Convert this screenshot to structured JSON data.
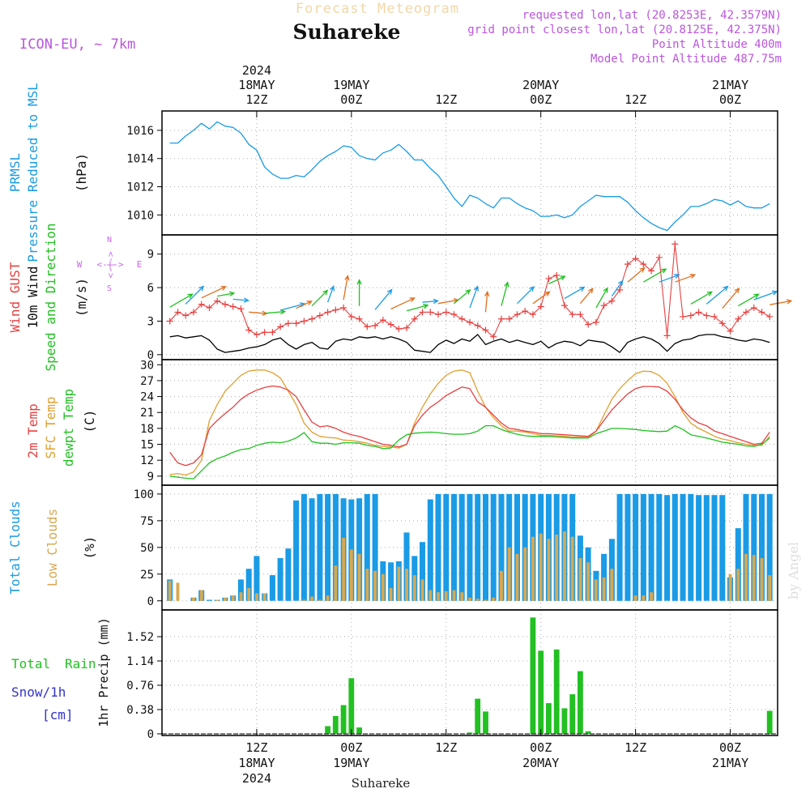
{
  "header": {
    "subtitle": "Forecast Meteogram",
    "location": "Suhareke",
    "model": "ICON-EU, ~ 7km",
    "requested": "requested lon,lat (20.8253E, 42.3579N)",
    "gridpoint": "grid point closest lon,lat (20.8125E, 42.375N)",
    "point_alt": "Point Altitude 400m",
    "model_alt": "Model Point Altitude 487.75m",
    "footer": "Suhareke",
    "watermark": "by Angel"
  },
  "colors": {
    "pressure": "#1a9be6",
    "gust": "#e84040",
    "wind": "#000000",
    "temp2m": "#e84040",
    "sfc": "#e0a030",
    "dewpt": "#22c022",
    "clouds_total": "#1a9be6",
    "clouds_low": "#d8a850",
    "rain": "#22c022",
    "snow": "#3333cc",
    "header_purple": "#bb55dd",
    "compass": "#cc66ee"
  },
  "time_axis": {
    "top_year": "2024",
    "top": [
      {
        "h": 12,
        "l1": "18MAY",
        "l2": "12Z"
      },
      {
        "h": 24,
        "l1": "19MAY",
        "l2": "00Z"
      },
      {
        "h": 36,
        "l1": "",
        "l2": "12Z"
      },
      {
        "h": 48,
        "l1": "20MAY",
        "l2": "00Z"
      },
      {
        "h": 60,
        "l1": "",
        "l2": "12Z"
      },
      {
        "h": 72,
        "l1": "21MAY",
        "l2": "00Z"
      }
    ],
    "bottom": [
      {
        "h": 12,
        "l1": "12Z",
        "l2": "18MAY",
        "l3": "2024"
      },
      {
        "h": 24,
        "l1": "00Z",
        "l2": "19MAY",
        "l3": ""
      },
      {
        "h": 36,
        "l1": "12Z",
        "l2": "",
        "l3": ""
      },
      {
        "h": 48,
        "l1": "00Z",
        "l2": "20MAY",
        "l3": ""
      },
      {
        "h": 60,
        "l1": "12Z",
        "l2": "",
        "l3": ""
      },
      {
        "h": 72,
        "l1": "00Z",
        "l2": "21MAY",
        "l3": ""
      }
    ]
  },
  "panel_labels": {
    "pressure": [
      "PRMSL",
      "Pressure Reduced to MSL",
      "(hPa)"
    ],
    "wind": [
      "Wind GUST",
      "10m Wind",
      "Speed and Direction",
      "(m/s)"
    ],
    "compass": [
      "N",
      "W",
      "E",
      "S",
      "<-|->"
    ],
    "temp": [
      "2m Temp",
      "SFC Temp",
      "dewpt Temp",
      "(C)"
    ],
    "clouds": [
      "Total Clouds",
      "Low Clouds",
      "(%)"
    ],
    "precip": [
      "Total",
      "Rain",
      "Snow/1h",
      "[cm]",
      "1hr Precip (mm)"
    ]
  },
  "chart_data": {
    "type": "line",
    "title": "Forecast Meteogram Suhareke",
    "x_hours": [
      1,
      2,
      3,
      4,
      5,
      6,
      7,
      8,
      9,
      10,
      11,
      12,
      13,
      14,
      15,
      16,
      17,
      18,
      19,
      20,
      21,
      22,
      23,
      24,
      25,
      26,
      27,
      28,
      29,
      30,
      31,
      32,
      33,
      34,
      35,
      36,
      37,
      38,
      39,
      40,
      41,
      42,
      43,
      44,
      45,
      46,
      47,
      48,
      49,
      50,
      51,
      52,
      53,
      54,
      55,
      56,
      57,
      58,
      59,
      60,
      61,
      62,
      63,
      64,
      65,
      66,
      67,
      68,
      69,
      70,
      71,
      72,
      73,
      74,
      75,
      76,
      77
    ],
    "pressure": {
      "ylabel": "hPa",
      "yticks": [
        "1010",
        "1012",
        "1014",
        "1016"
      ],
      "ylim": [
        1008.7,
        1017.2
      ],
      "values": [
        1015.1,
        1015.1,
        1015.6,
        1016.0,
        1016.5,
        1016.1,
        1016.6,
        1016.3,
        1016.2,
        1015.8,
        1015.0,
        1014.6,
        1013.4,
        1012.9,
        1012.6,
        1012.6,
        1012.8,
        1012.7,
        1013.2,
        1013.8,
        1014.2,
        1014.5,
        1014.9,
        1014.8,
        1014.2,
        1014.0,
        1013.9,
        1014.4,
        1014.6,
        1015.0,
        1014.5,
        1013.9,
        1013.9,
        1013.3,
        1012.8,
        1012.0,
        1011.2,
        1010.6,
        1011.4,
        1011.2,
        1010.8,
        1010.5,
        1011.2,
        1011.2,
        1010.8,
        1010.5,
        1010.3,
        1009.9,
        1009.9,
        1010.0,
        1009.8,
        1010.0,
        1010.6,
        1011.0,
        1011.4,
        1011.3,
        1011.3,
        1011.3,
        1010.9,
        1010.3,
        1009.8,
        1009.4,
        1009.1,
        1008.9,
        1009.5,
        1010.0,
        1010.6,
        1010.6,
        1010.8,
        1011.1,
        1011.0,
        1010.7,
        1011.0,
        1010.6,
        1010.5,
        1010.5,
        1010.8
      ]
    },
    "wind": {
      "ylabel": "m/s",
      "yticks": [
        "0",
        "3",
        "6",
        "9"
      ],
      "ylim": [
        -0.3,
        10.5
      ],
      "gust": [
        3.0,
        3.8,
        3.5,
        3.8,
        4.5,
        4.2,
        4.8,
        4.5,
        4.3,
        4.1,
        2.2,
        1.8,
        2.0,
        2.0,
        2.5,
        2.8,
        2.8,
        3.0,
        3.2,
        3.5,
        3.8,
        4.0,
        4.2,
        3.4,
        3.2,
        2.5,
        2.6,
        3.1,
        2.7,
        2.3,
        2.4,
        3.2,
        3.8,
        3.8,
        3.6,
        3.8,
        3.6,
        3.2,
        2.9,
        2.6,
        2.2,
        1.6,
        3.2,
        3.2,
        3.6,
        3.9,
        3.6,
        4.3,
        6.8,
        7.1,
        4.4,
        3.6,
        3.6,
        2.7,
        2.9,
        4.4,
        4.8,
        5.8,
        8.1,
        8.6,
        8.1,
        7.5,
        8.7,
        1.7,
        9.9,
        3.4,
        3.5,
        3.8,
        3.5,
        3.4,
        2.8,
        2.1,
        3.2,
        3.8,
        4.2,
        3.8,
        3.4
      ],
      "speed": [
        1.6,
        1.7,
        1.5,
        1.6,
        1.7,
        1.3,
        0.5,
        0.2,
        0.3,
        0.4,
        0.6,
        0.7,
        0.9,
        1.3,
        1.5,
        0.9,
        0.5,
        0.9,
        1.1,
        0.6,
        0.5,
        1.2,
        1.4,
        1.3,
        1.6,
        1.5,
        1.6,
        1.4,
        1.6,
        1.4,
        1.1,
        0.4,
        0.3,
        0.2,
        0.9,
        1.3,
        1.0,
        1.4,
        1.2,
        1.8,
        0.9,
        1.2,
        1.4,
        1.1,
        1.3,
        1.1,
        0.9,
        1.2,
        0.6,
        1.0,
        1.2,
        1.1,
        0.8,
        1.3,
        1.2,
        1.1,
        0.7,
        0.2,
        1.1,
        1.4,
        1.6,
        1.4,
        1.0,
        0.3,
        1.0,
        1.3,
        1.4,
        1.7,
        1.8,
        1.8,
        1.6,
        1.5,
        1.3,
        1.2,
        1.4,
        1.3,
        1.1
      ],
      "dir_deg": [
        240,
        235,
        225,
        230,
        245,
        250,
        260,
        270,
        275,
        280,
        275,
        270,
        265,
        260,
        255,
        250,
        245,
        235,
        225,
        210,
        200,
        195,
        190,
        185,
        180,
        200,
        220,
        240,
        245,
        250,
        255,
        260,
        265,
        270,
        260,
        245,
        230,
        210,
        200,
        190,
        185,
        180,
        195,
        210,
        225,
        230,
        235,
        240,
        245,
        250,
        240,
        230,
        220,
        215,
        210,
        205,
        215,
        225,
        230,
        235,
        240,
        245,
        250,
        255,
        250,
        245,
        240,
        235,
        230,
        225,
        220,
        230,
        240,
        245,
        250,
        255,
        260
      ]
    },
    "temp": {
      "ylabel": "C",
      "yticks": [
        "9",
        "12",
        "15",
        "18",
        "21",
        "24",
        "27",
        "30"
      ],
      "ylim": [
        7.6,
        30.5
      ],
      "t2m": [
        13.5,
        11.5,
        11.0,
        11.5,
        13.0,
        18.0,
        19.5,
        20.8,
        22.0,
        23.5,
        24.5,
        25.2,
        25.7,
        26.0,
        25.8,
        25.2,
        24.0,
        21.5,
        19.2,
        18.3,
        18.5,
        18.0,
        17.3,
        16.8,
        16.5,
        16.0,
        15.5,
        15.0,
        14.8,
        14.5,
        15.0,
        18.5,
        20.5,
        22.0,
        23.0,
        24.2,
        25.0,
        25.8,
        25.5,
        23.0,
        22.0,
        20.5,
        19.0,
        18.0,
        17.8,
        17.5,
        17.3,
        17.0,
        17.0,
        16.9,
        16.8,
        16.7,
        16.6,
        16.5,
        17.5,
        19.5,
        21.5,
        23.0,
        24.5,
        25.5,
        25.9,
        25.9,
        25.8,
        25.0,
        23.5,
        21.5,
        20.0,
        19.0,
        18.5,
        17.5,
        17.0,
        16.5,
        16.0,
        15.5,
        15.0,
        15.2,
        17.3
      ],
      "sfc": [
        9.3,
        9.5,
        9.2,
        9.8,
        12.0,
        19.5,
        22.5,
        25.0,
        26.5,
        28.0,
        28.8,
        29.0,
        29.0,
        28.5,
        27.5,
        25.0,
        22.5,
        19.0,
        17.3,
        16.5,
        16.3,
        16.2,
        15.8,
        15.7,
        15.5,
        15.2,
        14.8,
        14.6,
        14.5,
        14.3,
        15.0,
        19.0,
        22.0,
        24.5,
        26.5,
        28.0,
        28.8,
        29.0,
        28.5,
        25.0,
        22.0,
        20.0,
        18.5,
        17.5,
        17.5,
        17.3,
        17.0,
        16.7,
        16.7,
        16.6,
        16.5,
        16.4,
        16.4,
        16.3,
        17.5,
        20.5,
        23.5,
        25.5,
        27.0,
        28.3,
        28.8,
        28.7,
        28.0,
        26.5,
        24.0,
        21.0,
        19.0,
        18.0,
        17.3,
        16.5,
        16.0,
        15.7,
        15.3,
        15.0,
        14.8,
        14.8,
        16.5
      ],
      "dewpt": [
        9.0,
        8.8,
        8.6,
        8.5,
        10.0,
        11.5,
        12.3,
        12.8,
        13.5,
        14.0,
        14.2,
        14.8,
        15.2,
        15.4,
        15.3,
        15.6,
        16.2,
        17.2,
        15.5,
        15.2,
        15.2,
        15.0,
        15.3,
        15.3,
        15.2,
        14.8,
        14.6,
        14.2,
        14.3,
        15.8,
        16.8,
        17.1,
        17.2,
        17.3,
        17.2,
        17.0,
        16.9,
        16.9,
        17.0,
        17.5,
        18.5,
        18.5,
        17.8,
        17.3,
        16.9,
        16.6,
        16.5,
        16.5,
        16.5,
        16.4,
        16.3,
        16.2,
        16.2,
        16.2,
        17.0,
        17.5,
        18.0,
        18.0,
        17.9,
        17.8,
        17.6,
        17.5,
        17.4,
        17.5,
        18.5,
        17.8,
        16.8,
        16.5,
        16.2,
        15.8,
        15.4,
        15.2,
        15.0,
        14.7,
        14.6,
        15.0,
        16.2
      ]
    },
    "clouds": {
      "ylabel": "%",
      "yticks": [
        "0",
        "25",
        "50",
        "75",
        "100"
      ],
      "ylim": [
        -7,
        106
      ],
      "total": [
        20,
        0,
        0,
        3,
        10,
        1,
        1,
        3,
        5,
        20,
        30,
        42,
        7,
        24,
        40,
        49,
        94,
        100,
        96,
        100,
        100,
        100,
        96,
        95,
        96,
        100,
        100,
        37,
        36,
        37,
        64,
        42,
        55,
        95,
        100,
        100,
        100,
        100,
        100,
        100,
        100,
        100,
        100,
        100,
        100,
        100,
        100,
        100,
        100,
        100,
        100,
        100,
        61,
        50,
        28,
        44,
        58,
        100,
        100,
        100,
        100,
        100,
        100,
        99,
        100,
        100,
        100,
        99,
        99,
        99,
        99,
        22,
        68,
        100,
        100,
        100,
        100
      ],
      "low": [
        19,
        17,
        0,
        3,
        10,
        0,
        1,
        3,
        5,
        8,
        12,
        7,
        7,
        0,
        0,
        0,
        0,
        1,
        4,
        1,
        5,
        33,
        59,
        48,
        44,
        30,
        28,
        25,
        12,
        32,
        30,
        24,
        20,
        10,
        8,
        9,
        10,
        8,
        3,
        2,
        1,
        3,
        28,
        50,
        44,
        50,
        60,
        63,
        58,
        62,
        65,
        60,
        40,
        36,
        20,
        22,
        30,
        0,
        0,
        5,
        5,
        8,
        0,
        0,
        0,
        0,
        0,
        0,
        0,
        0,
        0,
        25,
        30,
        44,
        43,
        40,
        24
      ]
    },
    "precip": {
      "ylabel": "mm",
      "yticks": [
        "0",
        "0.38",
        "0.76",
        "1.14",
        "1.52"
      ],
      "ylim": [
        0,
        1.9
      ],
      "values": [
        0,
        0,
        0,
        0,
        0,
        0,
        0,
        0,
        0,
        0,
        0,
        0,
        0,
        0,
        0,
        0,
        0,
        0,
        0,
        0,
        0.12,
        0.28,
        0.45,
        0.87,
        0.1,
        0,
        0,
        0,
        0,
        0,
        0,
        0,
        0,
        0,
        0,
        0,
        0,
        0,
        0.02,
        0.55,
        0.35,
        0,
        0,
        0,
        0,
        0,
        1.82,
        1.3,
        0.48,
        1.32,
        0.4,
        0.62,
        0.98,
        0.04,
        0,
        0,
        0,
        0,
        0,
        0,
        0,
        0,
        0,
        0,
        0,
        0,
        0,
        0,
        0,
        0,
        0,
        0,
        0,
        0,
        0,
        0,
        0.36
      ]
    }
  }
}
